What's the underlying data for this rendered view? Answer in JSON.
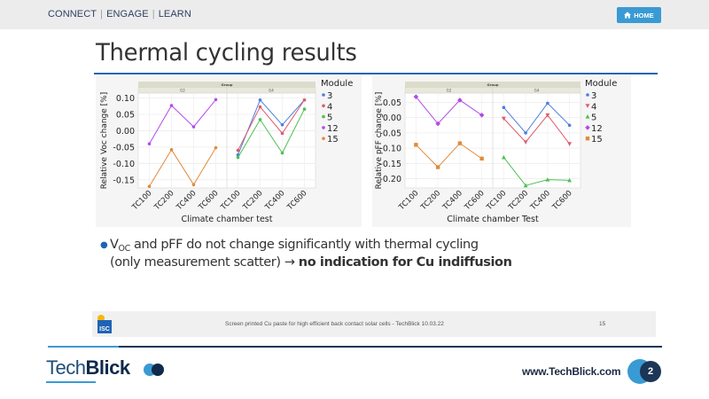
{
  "nav": {
    "items": [
      "CONNECT",
      "ENGAGE",
      "LEARN"
    ],
    "home_label": "HOME",
    "home_icon": "home-icon"
  },
  "slide": {
    "title": "Thermal cycling results",
    "bullet": {
      "v": "V",
      "v_sub": "OC",
      "line1_rest": " and pFF do not change significantly with thermal cycling",
      "line2_plain": "(only measurement scatter) → ",
      "line2_bold": "no indication for Cu indiffusion"
    },
    "footer": {
      "logo_text": "ISC",
      "text": "Screen printed Cu paste for high efficient back contact solar cells - TechBlick 10.03.22",
      "page": "15"
    }
  },
  "brand": {
    "logo_tech": "Tech",
    "logo_blick": "Blick",
    "url": "www.TechBlick.com",
    "page_number": "2"
  },
  "colors": {
    "accent": "#3a9ad3",
    "dark": "#1d3557",
    "title_rule": "#1f63b5",
    "series": {
      "3": "#4a7fe0",
      "4": "#e05a6b",
      "5": "#4fbf56",
      "12": "#b24be8",
      "15": "#e08a3c"
    }
  },
  "chart_data": [
    {
      "type": "line",
      "title": "",
      "group_header": "Group",
      "groups": [
        "G2",
        "G4"
      ],
      "categories": [
        "TC100",
        "TC200",
        "TC400",
        "TC600"
      ],
      "xlabel": "Climate chamber test",
      "ylabel": "Relative Voc change [%]",
      "ylim": [
        -0.175,
        0.115
      ],
      "yticks": [
        0.1,
        0.05,
        0.0,
        -0.05,
        -0.1,
        -0.15
      ],
      "ytick_labels": [
        "0.10",
        "0.05",
        "0.00",
        "-0.05",
        "-0.10",
        "-0.15"
      ],
      "grid": true,
      "legend_title": "Module",
      "legend_position": "right",
      "legend_marker": "dot",
      "legend": [
        "3",
        "4",
        "5",
        "12",
        "15"
      ],
      "series": [
        {
          "name": "3",
          "group": "G4",
          "marker": "circle",
          "values": [
            -0.074,
            0.094,
            0.018,
            0.094
          ]
        },
        {
          "name": "4",
          "group": "G4",
          "marker": "circle",
          "values": [
            -0.06,
            0.073,
            -0.008,
            0.094
          ]
        },
        {
          "name": "5",
          "group": "G4",
          "marker": "circle",
          "values": [
            -0.082,
            0.034,
            -0.068,
            0.066
          ]
        },
        {
          "name": "12",
          "group": "G2",
          "marker": "circle",
          "values": [
            -0.04,
            0.077,
            0.012,
            0.095
          ]
        },
        {
          "name": "15",
          "group": "G2",
          "marker": "circle",
          "values": [
            -0.17,
            -0.058,
            -0.165,
            -0.052
          ]
        }
      ]
    },
    {
      "type": "line",
      "title": "",
      "group_header": "Group",
      "groups": [
        "G2",
        "G4"
      ],
      "categories": [
        "TC100",
        "TC200",
        "TC400",
        "TC600"
      ],
      "xlabel": "Climate chamber Test",
      "ylabel": "Relative pFF change [%]",
      "ylim": [
        -0.23,
        0.08
      ],
      "yticks": [
        0.05,
        0.0,
        -0.05,
        -0.1,
        -0.15,
        -0.2
      ],
      "ytick_labels": [
        "0.05",
        "0.00",
        "-0.05",
        "-0.10",
        "-0.15",
        "-0.20"
      ],
      "grid": true,
      "legend_title": "Module",
      "legend_position": "right",
      "legend_marker": "shape",
      "legend": [
        "3",
        "4",
        "5",
        "12",
        "15"
      ],
      "series": [
        {
          "name": "3",
          "group": "G4",
          "marker": "circle",
          "values": [
            0.033,
            -0.05,
            0.047,
            -0.025
          ]
        },
        {
          "name": "4",
          "group": "G4",
          "marker": "triangle-down",
          "values": [
            -0.003,
            -0.08,
            0.008,
            -0.086
          ]
        },
        {
          "name": "5",
          "group": "G4",
          "marker": "triangle-up",
          "values": [
            -0.13,
            -0.222,
            -0.203,
            -0.205
          ]
        },
        {
          "name": "12",
          "group": "G2",
          "marker": "diamond",
          "values": [
            0.068,
            -0.02,
            0.057,
            0.008
          ]
        },
        {
          "name": "15",
          "group": "G2",
          "marker": "square",
          "values": [
            -0.089,
            -0.162,
            -0.084,
            -0.134
          ]
        }
      ]
    }
  ]
}
